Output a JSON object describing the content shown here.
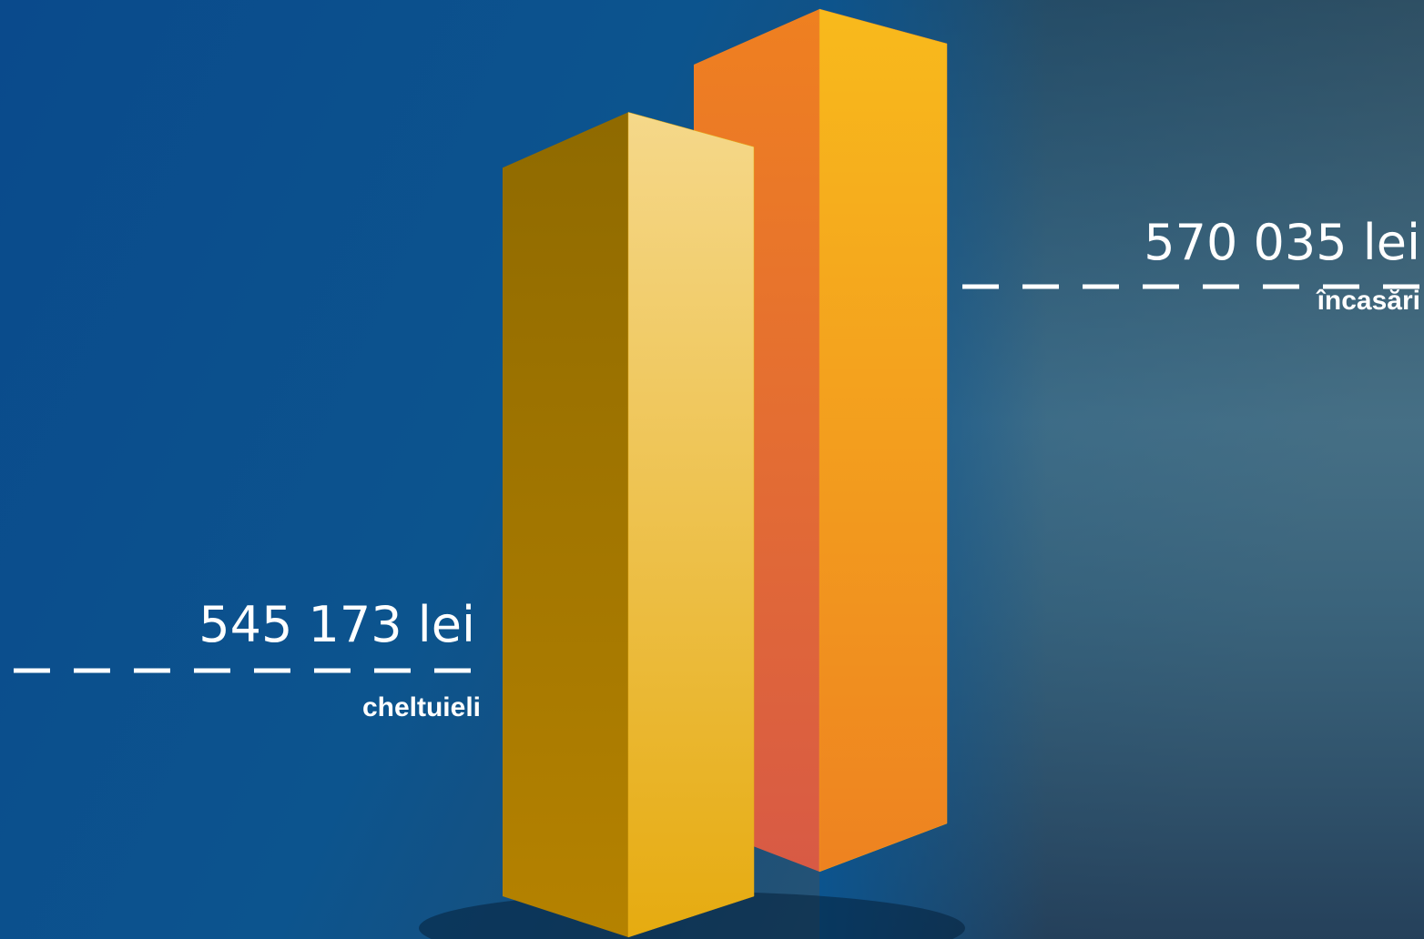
{
  "chart_data": {
    "type": "bar",
    "categories": [
      "cheltuieli",
      "încasări"
    ],
    "values": [
      545173,
      570035
    ],
    "value_labels": [
      "545 173 lei",
      "570 035 lei"
    ],
    "colors": [
      "#e6ab10",
      "#f29a1e"
    ]
  }
}
